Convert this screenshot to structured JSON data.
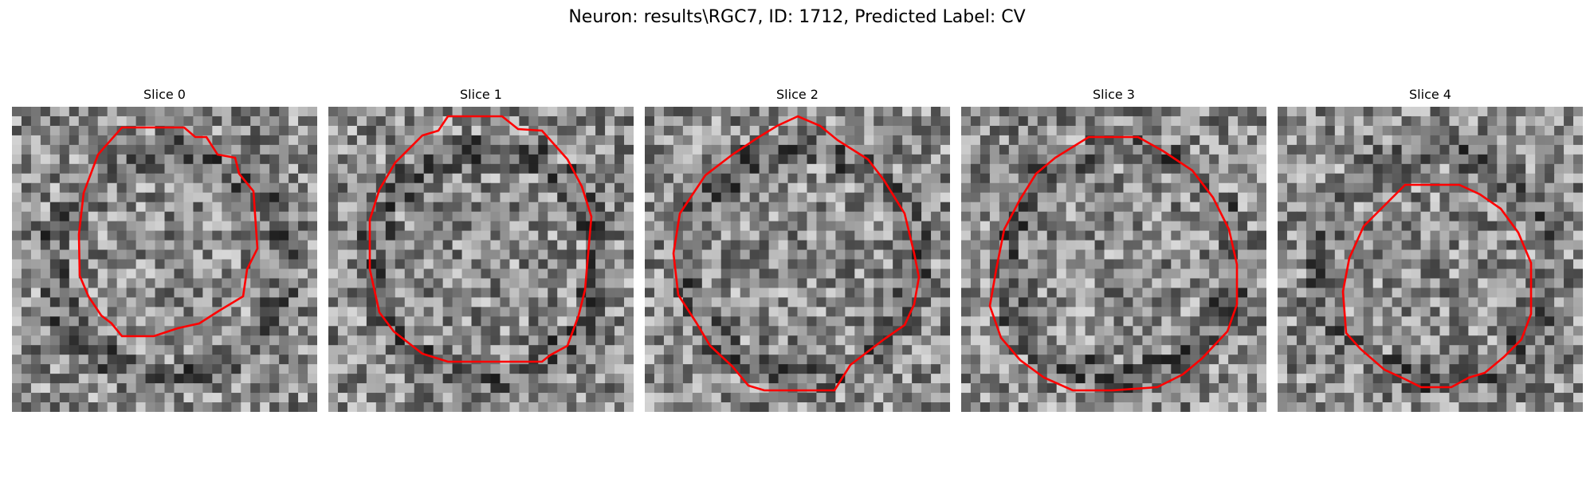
{
  "figure": {
    "title": "Neuron: results\\RGC7, ID: 1712, Predicted Label: CV"
  },
  "contour_color": "#ff0000",
  "colormap": "gray",
  "panels": [
    {
      "title": "Slice 0",
      "seed": 11
    },
    {
      "title": "Slice 1",
      "seed": 23
    },
    {
      "title": "Slice 2",
      "seed": 37
    },
    {
      "title": "Slice 3",
      "seed": 49
    },
    {
      "title": "Slice 4",
      "seed": 61
    }
  ]
}
